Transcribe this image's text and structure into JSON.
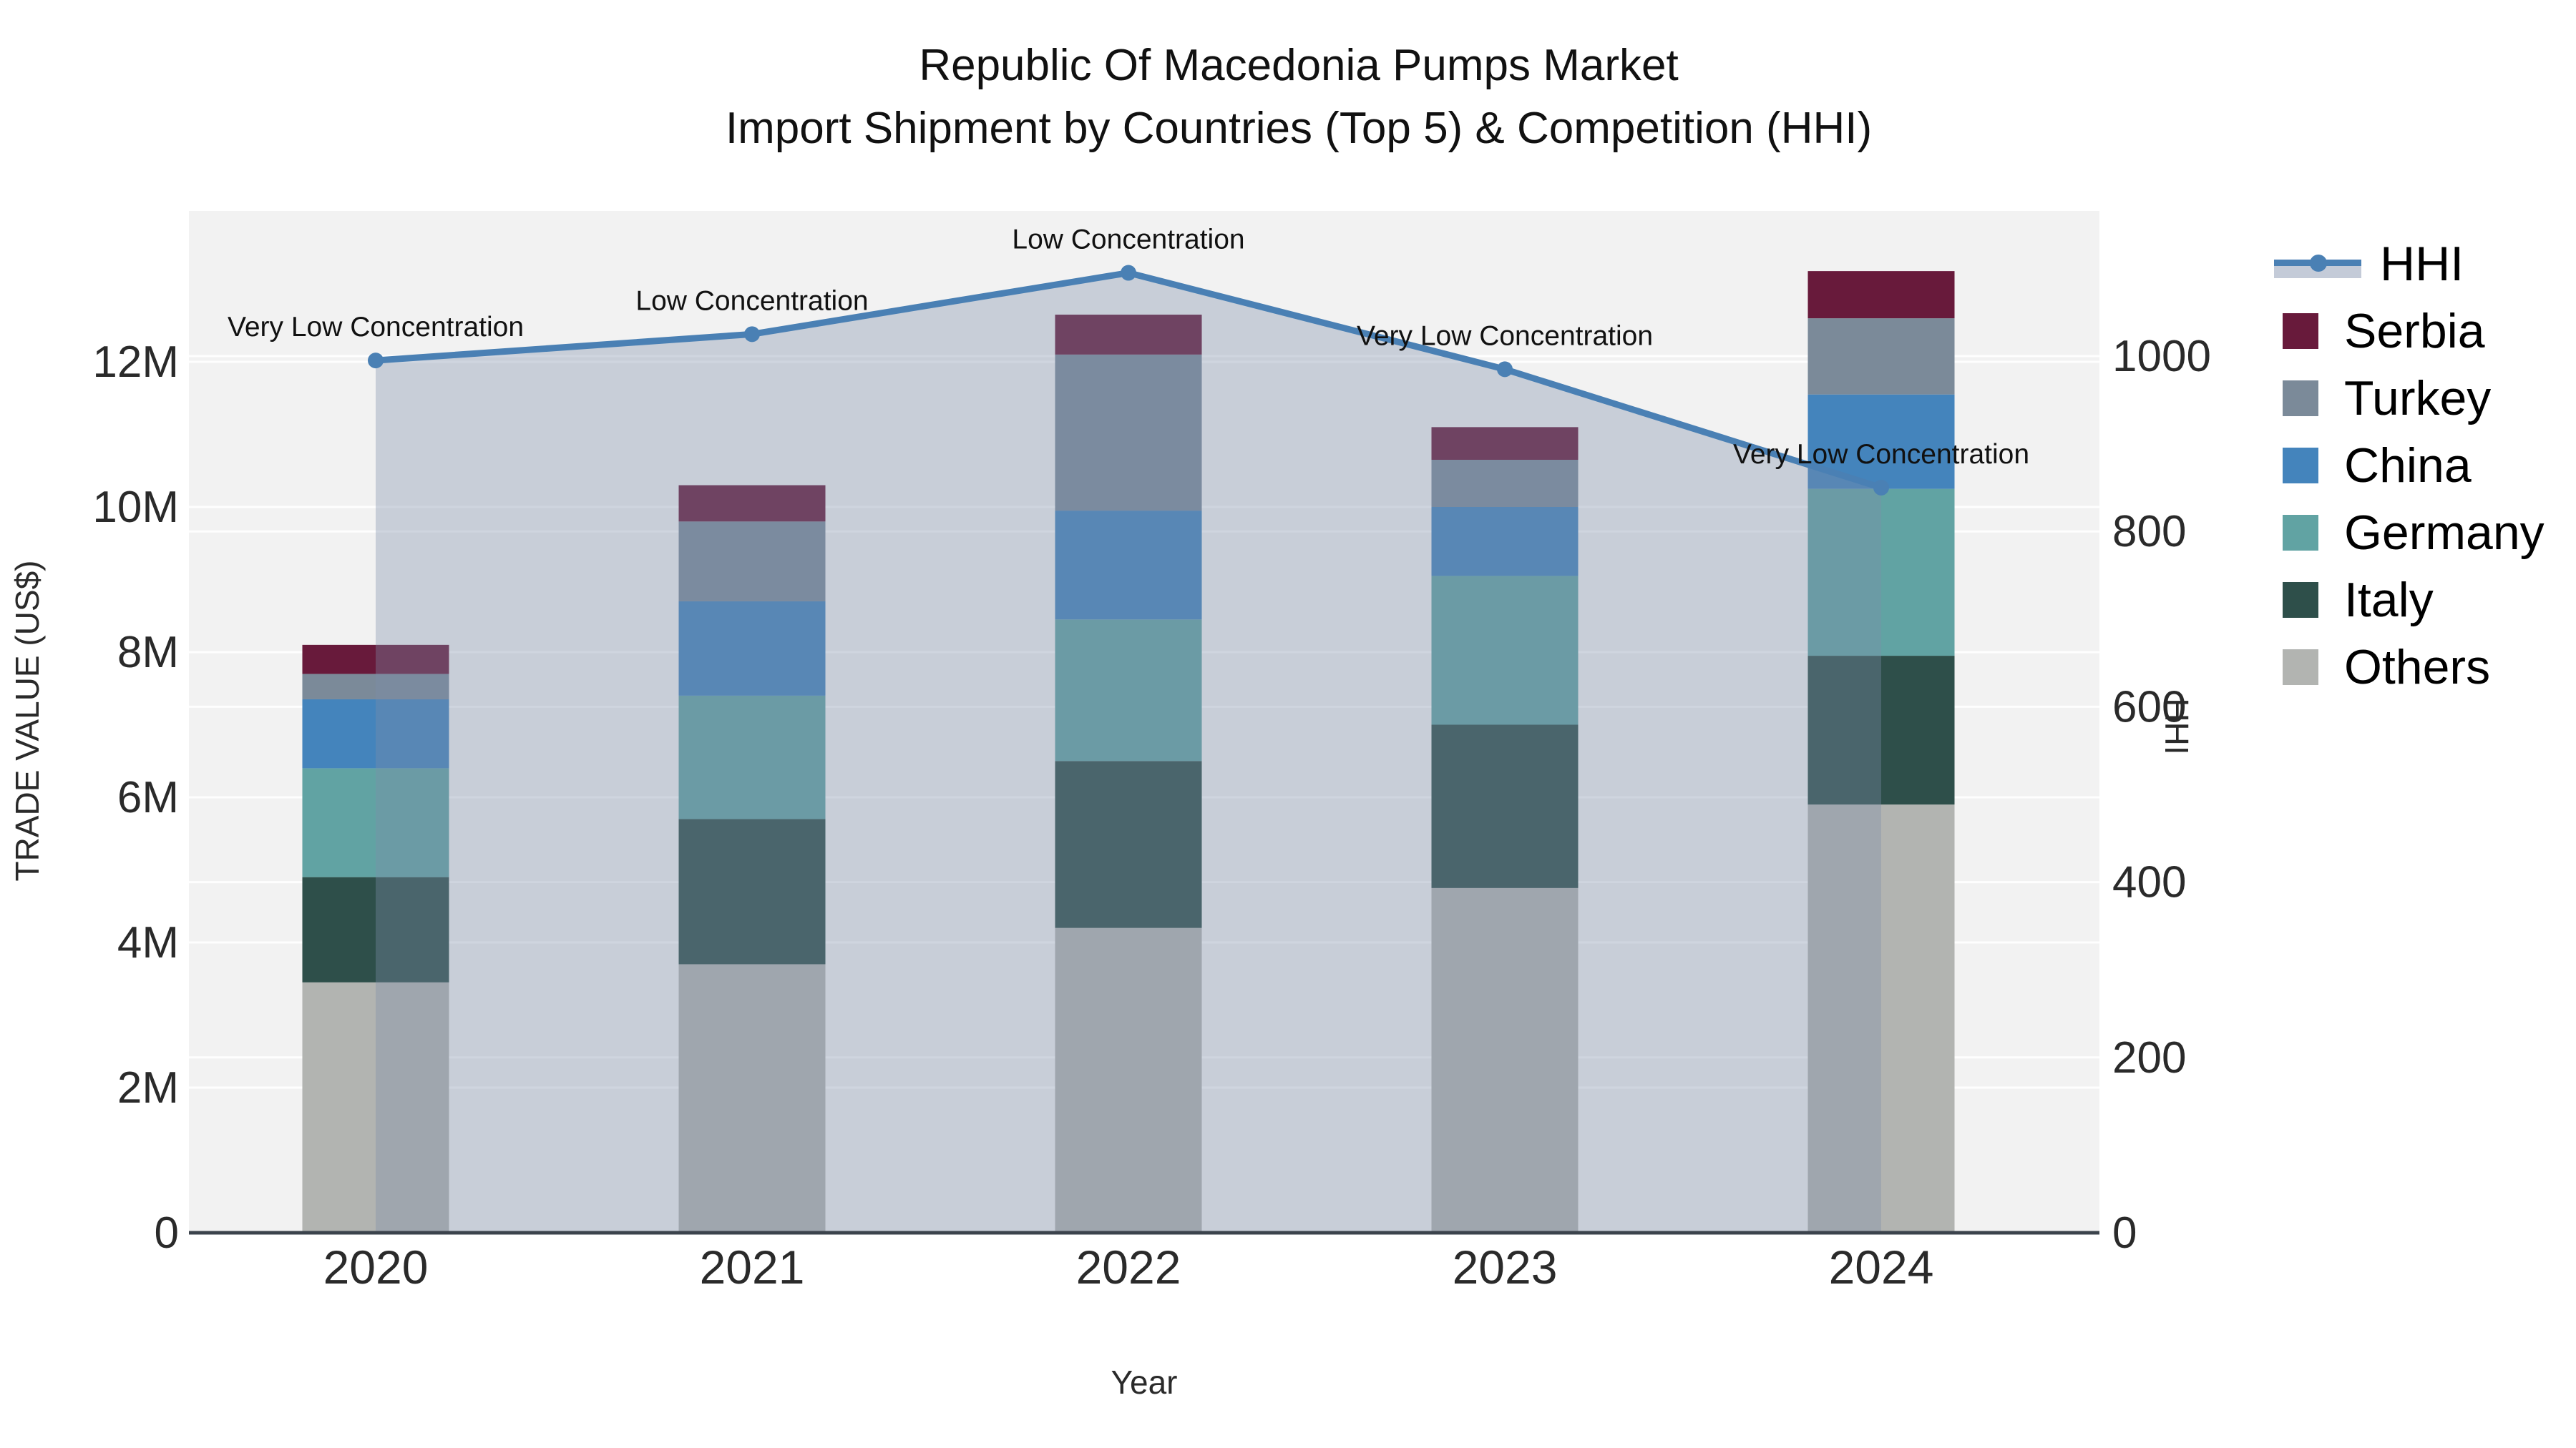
{
  "title": {
    "line1": "Republic Of Macedonia Pumps Market",
    "line2": "Import Shipment by Countries (Top 5) & Competition (HHI)"
  },
  "axes": {
    "x": {
      "title": "Year",
      "tick_labels": [
        "2020",
        "2021",
        "2022",
        "2023",
        "2024"
      ]
    },
    "y_left": {
      "title": "TRADE VALUE (US$)",
      "tick_labels": [
        "0",
        "2M",
        "4M",
        "6M",
        "8M",
        "10M",
        "12M"
      ],
      "tick_values": [
        0,
        2000000,
        4000000,
        6000000,
        8000000,
        10000000,
        12000000
      ]
    },
    "y_right": {
      "title": "HHI",
      "tick_labels": [
        "0",
        "200",
        "400",
        "600",
        "800",
        "1000"
      ],
      "tick_values": [
        0,
        200,
        400,
        600,
        800,
        1000
      ]
    }
  },
  "legend": [
    {
      "id": "hhi",
      "label": "HHI",
      "kind": "line"
    },
    {
      "id": "serbia",
      "label": "Serbia",
      "kind": "swatch",
      "color": "#681a3b"
    },
    {
      "id": "turkey",
      "label": "Turkey",
      "kind": "swatch",
      "color": "#7b8a99"
    },
    {
      "id": "china",
      "label": "China",
      "kind": "swatch",
      "color": "#4484bc"
    },
    {
      "id": "germany",
      "label": "Germany",
      "kind": "swatch",
      "color": "#61a3a3"
    },
    {
      "id": "italy",
      "label": "Italy",
      "kind": "swatch",
      "color": "#2e4f4a"
    },
    {
      "id": "others",
      "label": "Others",
      "kind": "swatch",
      "color": "#b2b4b1"
    }
  ],
  "colors": {
    "plot_background": "#f2f2f2",
    "gridline": "rgba(255,255,255,0.9)",
    "axis_line": "#3b434c",
    "hhi_line": "#4a80b4",
    "hhi_fill": "rgba(124,140,168,0.36)",
    "serbia": "#681a3b",
    "turkey": "#7b8a99",
    "china": "#4484bc",
    "germany": "#61a3a3",
    "italy": "#2e4f4a",
    "others": "#b2b4b1"
  },
  "chart_data": {
    "type": "bar",
    "subtype": "stacked-bar-with-line",
    "title": "Republic Of Macedonia Pumps Market — Import Shipment by Countries (Top 5) & Competition (HHI)",
    "xlabel": "Year",
    "ylabel_left": "TRADE VALUE (US$)",
    "ylabel_right": "HHI",
    "categories": [
      "2020",
      "2021",
      "2022",
      "2023",
      "2024"
    ],
    "ylim_left": [
      0,
      14100000
    ],
    "ylim_right": [
      0,
      1170
    ],
    "grid": true,
    "legend_position": "right",
    "series": [
      {
        "name": "Others",
        "color": "#b2b4b1",
        "values": [
          3450000,
          3700000,
          4200000,
          4750000,
          5900000
        ]
      },
      {
        "name": "Italy",
        "color": "#2e4f4a",
        "values": [
          1450000,
          2000000,
          2300000,
          2250000,
          2050000
        ]
      },
      {
        "name": "Germany",
        "color": "#61a3a3",
        "values": [
          1500000,
          1700000,
          1950000,
          2050000,
          2300000
        ]
      },
      {
        "name": "China",
        "color": "#4484bc",
        "values": [
          950000,
          1300000,
          1500000,
          950000,
          1300000
        ]
      },
      {
        "name": "Turkey",
        "color": "#7b8a99",
        "values": [
          350000,
          1100000,
          2150000,
          650000,
          1050000
        ]
      },
      {
        "name": "Serbia",
        "color": "#681a3b",
        "values": [
          400000,
          500000,
          550000,
          450000,
          650000
        ]
      }
    ],
    "bar_totals": [
      8100000,
      10300000,
      12650000,
      11100000,
      13250000
    ],
    "hhi": {
      "name": "HHI",
      "axis": "right",
      "values": [
        995,
        1025,
        1095,
        985,
        850
      ],
      "annotations": [
        "Very Low Concentration",
        "Low Concentration",
        "Low Concentration",
        "Very Low Concentration",
        "Very Low Concentration"
      ]
    }
  }
}
